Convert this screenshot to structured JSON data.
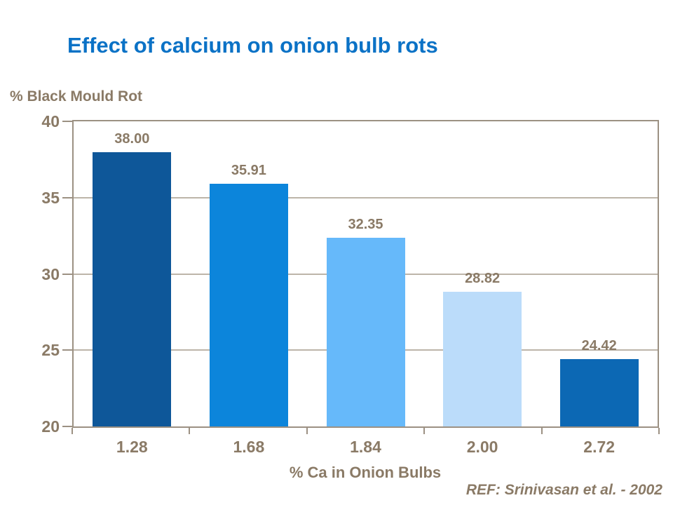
{
  "slide": {
    "background": "#ffffff"
  },
  "colors": {
    "title": "#0b72c6",
    "label": "#8a7a66",
    "axis": "#9c9183",
    "grid": "#bdb5a9"
  },
  "chart_data": {
    "type": "bar",
    "title": "Effect of calcium on onion bulb rots",
    "xlabel": "% Ca in Onion Bulbs",
    "ylabel": "% Black Mould Rot",
    "categories": [
      "1.28",
      "1.68",
      "1.84",
      "2.00",
      "2.72"
    ],
    "values": [
      38.0,
      35.91,
      32.35,
      28.82,
      24.42
    ],
    "value_labels": [
      "38.00",
      "35.91",
      "32.35",
      "28.82",
      "24.42"
    ],
    "bar_colors": [
      "#0e5799",
      "#0c85db",
      "#66b9fa",
      "#bbdcfa",
      "#0c68b4"
    ],
    "ylim": [
      20,
      40
    ],
    "yticks": [
      40,
      35,
      30,
      25,
      20
    ],
    "ytick_labels": [
      "40",
      "35",
      "30",
      "25",
      "20"
    ],
    "grid": "horizontal",
    "legend": "none",
    "annotation": "REF: Srinivasan et al. - 2002"
  }
}
